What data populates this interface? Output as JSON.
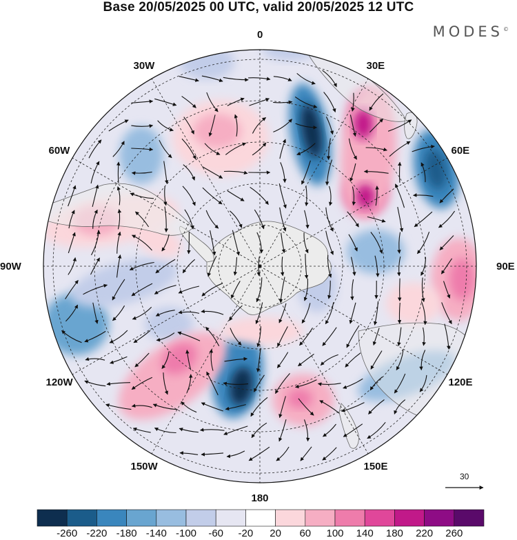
{
  "title": "Base 20/05/2025 00 UTC, valid 20/05/2025 12 UTC",
  "brand": "MODES",
  "brand_mark": "©",
  "longitude_labels": [
    {
      "text": "0",
      "lon": 0
    },
    {
      "text": "30E",
      "lon": 30
    },
    {
      "text": "60E",
      "lon": 60
    },
    {
      "text": "90E",
      "lon": 90
    },
    {
      "text": "120E",
      "lon": 120
    },
    {
      "text": "150E",
      "lon": 150
    },
    {
      "text": "180",
      "lon": 180
    },
    {
      "text": "150W",
      "lon": -150
    },
    {
      "text": "120W",
      "lon": -120
    },
    {
      "text": "90W",
      "lon": -90
    },
    {
      "text": "60W",
      "lon": -60
    },
    {
      "text": "30W",
      "lon": -30
    }
  ],
  "projection": "south polar stereographic",
  "legend": {
    "labels": [
      "-260",
      "-220",
      "-180",
      "-140",
      "-100",
      "-60",
      "-20",
      "20",
      "60",
      "100",
      "140",
      "180",
      "220",
      "260"
    ],
    "colors": [
      "#0e2e4f",
      "#1b5c8a",
      "#3a86bd",
      "#69a5d0",
      "#98bde0",
      "#c2cde9",
      "#e6e6f2",
      "#ffffff",
      "#fbd7dc",
      "#f6aec3",
      "#ee7cab",
      "#e0479a",
      "#c11989",
      "#8e0c85",
      "#5a0a6a"
    ]
  },
  "vector_reference": {
    "label": "30"
  },
  "colors": {
    "land": "#ececec",
    "coast": "#555555",
    "grid": "#222222",
    "vector": "#111111"
  }
}
